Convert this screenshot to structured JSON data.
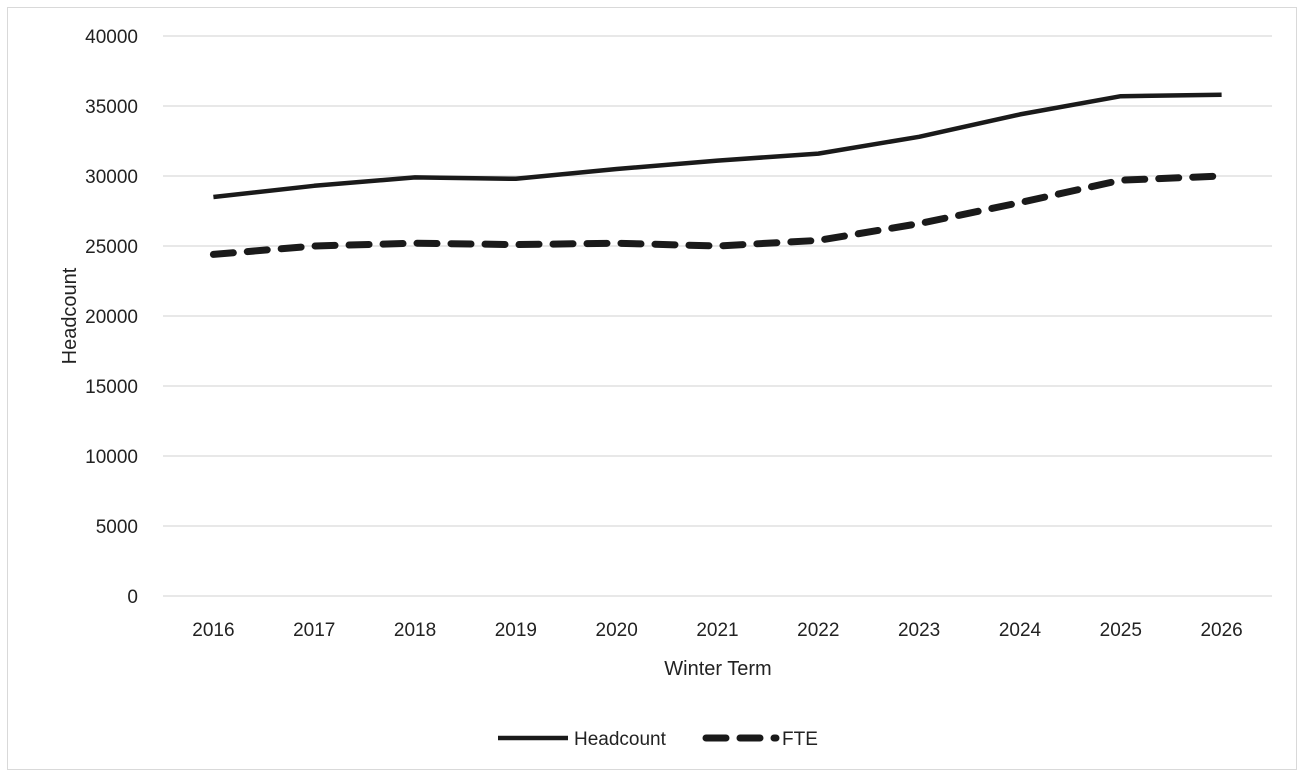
{
  "chart_data": {
    "type": "line",
    "title": "",
    "xlabel": "Winter Term",
    "ylabel": "Headcount",
    "categories": [
      "2016",
      "2017",
      "2018",
      "2019",
      "2020",
      "2021",
      "2022",
      "2023",
      "2024",
      "2025",
      "2026"
    ],
    "ylim": [
      0,
      40000
    ],
    "yticks": [
      0,
      5000,
      10000,
      15000,
      20000,
      25000,
      30000,
      35000,
      40000
    ],
    "grid": "horizontal",
    "legend_position": "bottom",
    "series": [
      {
        "name": "Headcount",
        "style": "solid",
        "color": "#1a1a1a",
        "values": [
          28500,
          29300,
          29900,
          29800,
          30500,
          31100,
          31600,
          32800,
          34400,
          35700,
          35800
        ]
      },
      {
        "name": "FTE",
        "style": "dashed",
        "color": "#1a1a1a",
        "values": [
          24400,
          25000,
          25200,
          25100,
          25200,
          25000,
          25400,
          26600,
          28100,
          29700,
          30000
        ]
      }
    ]
  }
}
